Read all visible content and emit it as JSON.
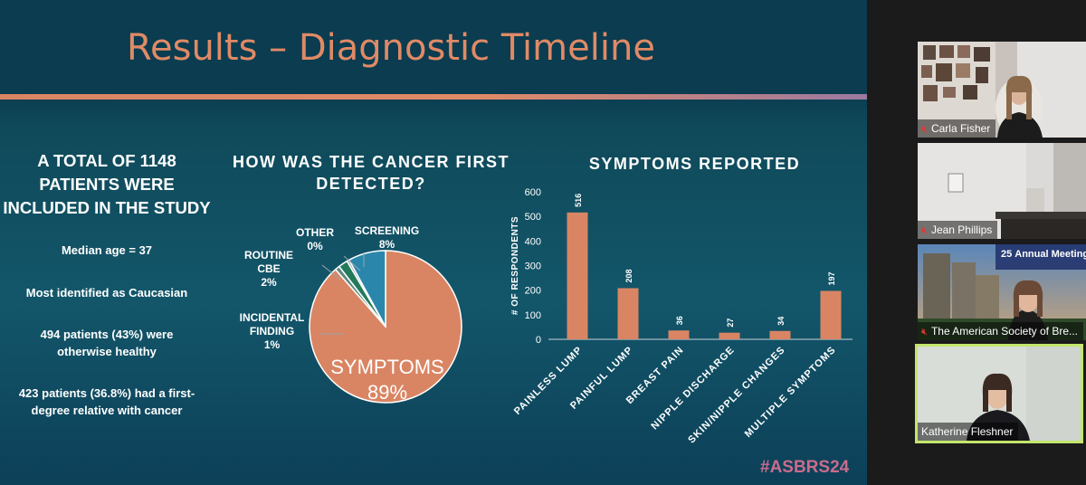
{
  "slide": {
    "title": "Results – Diagnostic Timeline",
    "hashtag": "#ASBRS24",
    "left_column": {
      "heading_lines": [
        "A TOTAL OF 1148",
        "PATIENTS WERE",
        "INCLUDED IN THE STUDY"
      ],
      "stats": [
        [
          "Median age = 37"
        ],
        [
          "Most identified as Caucasian"
        ],
        [
          "494 patients (43%) were",
          "otherwise healthy"
        ],
        [
          "423 patients (36.8%) had a first-",
          "degree relative with cancer"
        ]
      ]
    },
    "pie_heading_lines": [
      "HOW WAS THE CANCER FIRST",
      "DETECTED?"
    ],
    "bar_heading": "SYMPTOMS REPORTED"
  },
  "chart_data": [
    {
      "type": "pie",
      "title": "HOW WAS THE CANCER FIRST DETECTED?",
      "slices": [
        {
          "label": "SYMPTOMS",
          "value": 89,
          "display": "89%",
          "color": "#d98563"
        },
        {
          "label": "INCIDENTAL FINDING",
          "value": 1,
          "display": "1%",
          "color": "#5e8a80"
        },
        {
          "label": "ROUTINE CBE",
          "value": 2,
          "display": "2%",
          "color": "#227a5a"
        },
        {
          "label": "OTHER",
          "value": 0,
          "display": "0%",
          "color": "#9aa0a4"
        },
        {
          "label": "SCREENING",
          "value": 8,
          "display": "8%",
          "color": "#2a87ab"
        }
      ]
    },
    {
      "type": "bar",
      "title": "SYMPTOMS REPORTED",
      "ylabel": "# OF RESPONDENTS",
      "categories": [
        "PAINLESS LUMP",
        "PAINFUL LUMP",
        "BREAST PAIN",
        "NIPPLE DISCHARGE",
        "SKIN/NIPPLE CHANGES",
        "MULTIPLE SYMPTOMS"
      ],
      "values": [
        516,
        208,
        36,
        27,
        34,
        197
      ],
      "ylim": [
        0,
        600
      ],
      "yticks": [
        0,
        100,
        200,
        300,
        400,
        500,
        600
      ],
      "bar_color": "#d98563"
    }
  ],
  "participants": [
    {
      "name": "Carla Fisher",
      "muted": true
    },
    {
      "name": "Jean Phillips",
      "muted": true
    },
    {
      "name": "The American Society of Bre...",
      "muted": true
    },
    {
      "name": "Katherine Fleshner",
      "muted": false,
      "active_speaker": true
    }
  ],
  "banner": {
    "main": "Annual Meeting",
    "year": "25"
  }
}
